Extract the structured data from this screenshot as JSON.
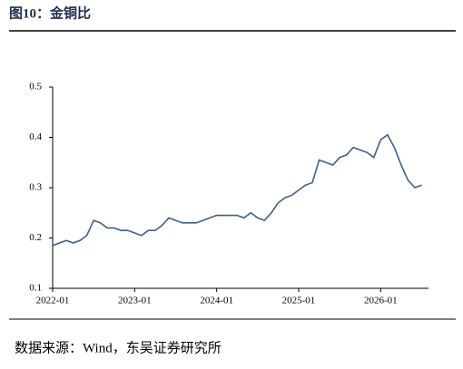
{
  "chart_data": {
    "type": "line",
    "title": "图10：金铜比",
    "source": "数据来源：Wind，东吴证券研究所",
    "x": [
      "2022-01",
      "2022-02",
      "2022-03",
      "2022-04",
      "2022-05",
      "2022-06",
      "2022-07",
      "2022-08",
      "2022-09",
      "2022-10",
      "2022-11",
      "2022-12",
      "2023-01",
      "2023-02",
      "2023-03",
      "2023-04",
      "2023-05",
      "2023-06",
      "2023-07",
      "2023-08",
      "2023-09",
      "2023-10",
      "2023-11",
      "2023-12",
      "2024-01",
      "2024-02",
      "2024-03",
      "2024-04",
      "2024-05",
      "2024-06",
      "2024-07",
      "2024-08",
      "2024-09",
      "2024-10",
      "2024-11",
      "2024-12",
      "2025-01",
      "2025-02",
      "2025-03",
      "2025-04",
      "2025-05",
      "2025-06",
      "2025-07",
      "2025-08",
      "2025-09",
      "2025-10",
      "2025-11",
      "2025-12",
      "2026-01",
      "2026-02",
      "2026-03",
      "2026-04",
      "2026-05",
      "2026-06",
      "2026-07"
    ],
    "series": [
      {
        "name": "金铜比",
        "color": "#3f5f8f",
        "values": [
          0.185,
          0.19,
          0.195,
          0.19,
          0.195,
          0.205,
          0.235,
          0.23,
          0.22,
          0.22,
          0.215,
          0.215,
          0.21,
          0.205,
          0.215,
          0.215,
          0.225,
          0.24,
          0.235,
          0.23,
          0.23,
          0.23,
          0.235,
          0.24,
          0.245,
          0.245,
          0.245,
          0.245,
          0.24,
          0.25,
          0.24,
          0.235,
          0.25,
          0.27,
          0.28,
          0.285,
          0.295,
          0.305,
          0.31,
          0.355,
          0.35,
          0.345,
          0.36,
          0.365,
          0.38,
          0.375,
          0.37,
          0.36,
          0.395,
          0.405,
          0.38,
          0.345,
          0.315,
          0.3,
          0.305
        ]
      }
    ],
    "xlim": [
      "2022-01",
      "2026-08"
    ],
    "xticks": [
      "2022-01",
      "2023-01",
      "2024-01",
      "2025-01",
      "2026-01"
    ],
    "ylim": [
      0.1,
      0.5
    ],
    "yticks": [
      0.1,
      0.2,
      0.3,
      0.4,
      0.5
    ]
  }
}
